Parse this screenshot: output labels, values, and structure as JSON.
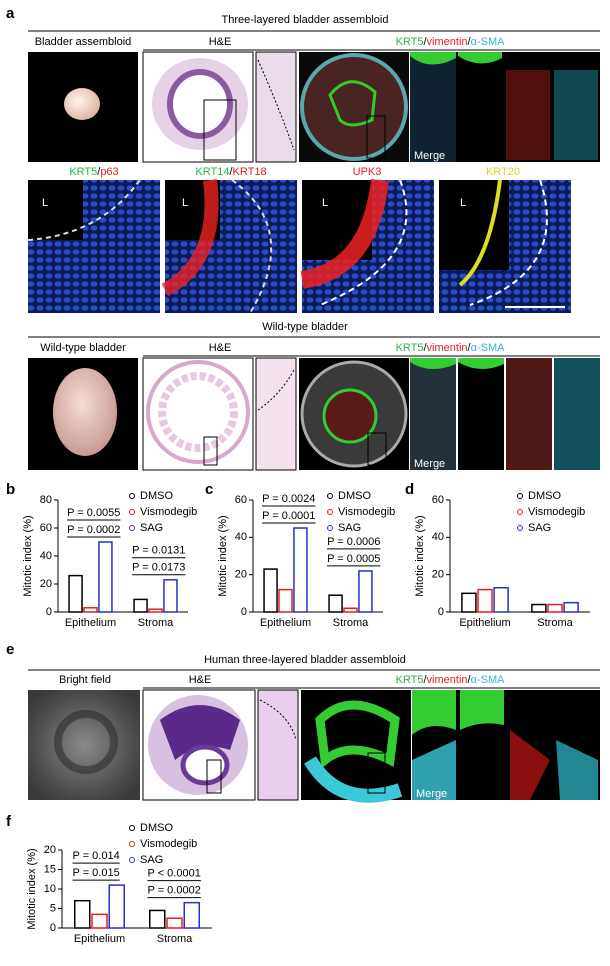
{
  "panel_labels": [
    "a",
    "b",
    "c",
    "d",
    "e",
    "f"
  ],
  "panel_a": {
    "title": "Three-layered bladder assembloid",
    "row1": [
      "Bladder assembloid",
      "H&E"
    ],
    "stain": [
      "KRT5",
      "/",
      "vimentin",
      "/",
      "α-SMA"
    ],
    "merge": "Merge",
    "row2": [
      [
        "KRT5",
        "/",
        "p63"
      ],
      [
        "KRT14",
        "/",
        "KRT18"
      ],
      [
        "UPK3"
      ],
      [
        "KRT20"
      ]
    ],
    "lumen": "L",
    "wild_title": "Wild-type bladder",
    "row3": [
      "Wild-type bladder",
      "H&E"
    ]
  },
  "panel_e": {
    "title": "Human three-layered bladder assembloid",
    "row": [
      "Bright field",
      "H&E"
    ],
    "stain": [
      "KRT5",
      "/",
      "vimentin",
      "/",
      "α-SMA"
    ],
    "merge": "Merge"
  },
  "chart_data": [
    {
      "type": "bar",
      "ylabel": "Mitotic index (%)",
      "categories": [
        "Epithelium",
        "Stroma"
      ],
      "series": [
        {
          "name": "DMSO",
          "color": "#000000",
          "values": [
            26,
            9
          ]
        },
        {
          "name": "Vismodegib",
          "color": "#e0201e",
          "values": [
            3,
            2
          ]
        },
        {
          "name": "SAG",
          "color": "#2233cc",
          "values": [
            50,
            23
          ]
        }
      ],
      "ylim": [
        0,
        80
      ],
      "yticks": [
        0,
        20,
        40,
        60,
        80
      ],
      "annotations": [
        [
          "P = 0.0055",
          "P = 0.0002"
        ],
        [
          "P = 0.0131",
          "P = 0.0173"
        ]
      ]
    },
    {
      "type": "bar",
      "ylabel": "Mitotic index (%)",
      "categories": [
        "Epithelium",
        "Stroma"
      ],
      "series": [
        {
          "name": "DMSO",
          "color": "#000000",
          "values": [
            23,
            9
          ]
        },
        {
          "name": "Vismodegib",
          "color": "#e0201e",
          "values": [
            12,
            2
          ]
        },
        {
          "name": "SAG",
          "color": "#2233cc",
          "values": [
            45,
            22
          ]
        }
      ],
      "ylim": [
        0,
        60
      ],
      "yticks": [
        0,
        20,
        40,
        60
      ],
      "annotations": [
        [
          "P = 0.0024",
          "P = 0.0001"
        ],
        [
          "P = 0.0006",
          "P = 0.0005"
        ]
      ]
    },
    {
      "type": "bar",
      "ylabel": "Mitotic index (%)",
      "categories": [
        "Epithelium",
        "Stroma"
      ],
      "series": [
        {
          "name": "DMSO",
          "color": "#000000",
          "values": [
            10,
            4
          ]
        },
        {
          "name": "Vismodegib",
          "color": "#e0201e",
          "values": [
            12,
            4
          ]
        },
        {
          "name": "SAG",
          "color": "#2233cc",
          "values": [
            13,
            5
          ]
        }
      ],
      "ylim": [
        0,
        60
      ],
      "yticks": [
        0,
        20,
        40,
        60
      ]
    },
    {
      "type": "bar",
      "ylabel": "Mitotic index (%)",
      "categories": [
        "Epithelium",
        "Stroma"
      ],
      "series": [
        {
          "name": "DMSO",
          "color": "#000000",
          "values": [
            7,
            4.5
          ]
        },
        {
          "name": "Vismodegib",
          "color": "#e0201e",
          "values": [
            3.5,
            2.5
          ]
        },
        {
          "name": "SAG",
          "color": "#2233cc",
          "values": [
            11,
            6.5
          ]
        }
      ],
      "ylim": [
        0,
        20
      ],
      "yticks": [
        0,
        5,
        10,
        15,
        20
      ],
      "annotations": [
        [
          "P = 0.014",
          "P = 0.015"
        ],
        [
          "P < 0.0001",
          "P = 0.0002"
        ]
      ]
    }
  ]
}
